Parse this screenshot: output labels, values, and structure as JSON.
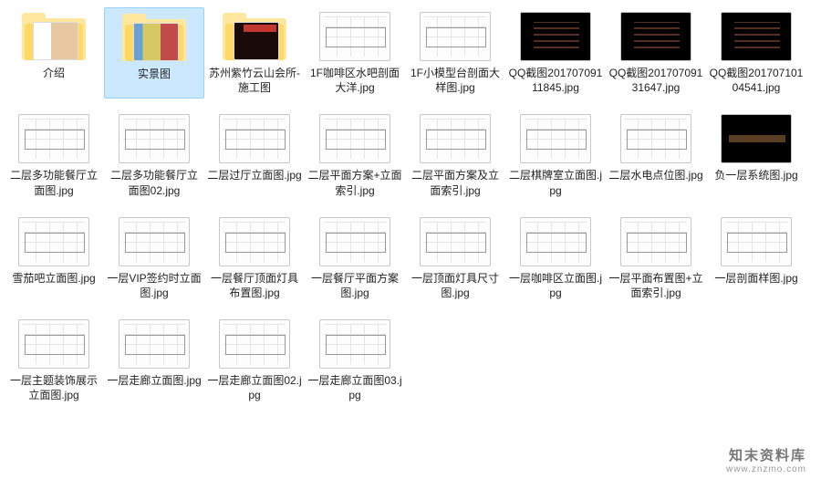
{
  "watermark": {
    "title": "知末资料库",
    "url": "www.znzmo.com"
  },
  "files": [
    {
      "name": "介绍",
      "type": "folder",
      "overlay": "photo1",
      "selected": false
    },
    {
      "name": "实景图",
      "type": "folder",
      "overlay": "photo2",
      "selected": true
    },
    {
      "name": "苏州紫竹云山会所-施工图",
      "type": "folder",
      "overlay": "photo3",
      "selected": false
    },
    {
      "name": "1F咖啡区水吧剖面大洋.jpg",
      "type": "jpg",
      "style": "cad"
    },
    {
      "name": "1F小模型台剖面大样图.jpg",
      "type": "jpg",
      "style": "cad"
    },
    {
      "name": "QQ截图20170709111845.jpg",
      "type": "jpg",
      "style": "dark"
    },
    {
      "name": "QQ截图20170709131647.jpg",
      "type": "jpg",
      "style": "dark"
    },
    {
      "name": "QQ截图20170710104541.jpg",
      "type": "jpg",
      "style": "dark"
    },
    {
      "name": "二层多功能餐厅立面图.jpg",
      "type": "jpg",
      "style": "cad"
    },
    {
      "name": "二层多功能餐厅立面图02.jpg",
      "type": "jpg",
      "style": "cad"
    },
    {
      "name": "二层过厅立面图.jpg",
      "type": "jpg",
      "style": "cad"
    },
    {
      "name": "二层平面方案+立面索引.jpg",
      "type": "jpg",
      "style": "cad"
    },
    {
      "name": "二层平面方案及立面索引.jpg",
      "type": "jpg",
      "style": "cad"
    },
    {
      "name": "二层棋牌室立面图.jpg",
      "type": "jpg",
      "style": "cad"
    },
    {
      "name": "二层水电点位图.jpg",
      "type": "jpg",
      "style": "cad"
    },
    {
      "name": "负一层系统图.jpg",
      "type": "jpg",
      "style": "dark2"
    },
    {
      "name": "雪茄吧立面图.jpg",
      "type": "jpg",
      "style": "cad"
    },
    {
      "name": "一层VIP签约时立面图.jpg",
      "type": "jpg",
      "style": "cad"
    },
    {
      "name": "一层餐厅顶面灯具布置图.jpg",
      "type": "jpg",
      "style": "cad"
    },
    {
      "name": "一层餐厅平面方案图.jpg",
      "type": "jpg",
      "style": "cad"
    },
    {
      "name": "一层顶面灯具尺寸图.jpg",
      "type": "jpg",
      "style": "cad"
    },
    {
      "name": "一层咖啡区立面图.jpg",
      "type": "jpg",
      "style": "cad"
    },
    {
      "name": "一层平面布置图+立面索引.jpg",
      "type": "jpg",
      "style": "cad"
    },
    {
      "name": "一层剖面样图.jpg",
      "type": "jpg",
      "style": "cad"
    },
    {
      "name": "一层主题装饰展示立面图.jpg",
      "type": "jpg",
      "style": "cad"
    },
    {
      "name": "一层走廊立面图.jpg",
      "type": "jpg",
      "style": "cad"
    },
    {
      "name": "一层走廊立面图02.jpg",
      "type": "jpg",
      "style": "cad"
    },
    {
      "name": "一层走廊立面图03.jpg",
      "type": "jpg",
      "style": "cad"
    }
  ]
}
